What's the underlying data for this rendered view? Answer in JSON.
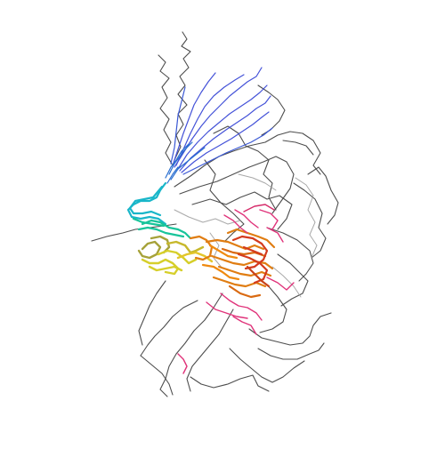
{
  "figure": {
    "kind": "protein-nmr-ensemble-ribbon",
    "background": "#ffffff",
    "colors": {
      "loops_gray": "#3a3a3a",
      "light_gray": "#9a9a9a",
      "blue": "#4452d8",
      "mid_blue": "#2b6fd0",
      "cyan": "#19b6c9",
      "teal": "#18c49a",
      "yellow": "#d6cf2a",
      "olive": "#a6a23a",
      "orange": "#e07d12",
      "red": "#d43a1e",
      "magenta": "#e0337a"
    },
    "ensemble_layers": [
      "loops-gray",
      "blue-tail-bundle",
      "cyan-teal-helix",
      "yellow-olive-helices",
      "orange-red-core",
      "magenta-strands"
    ]
  }
}
